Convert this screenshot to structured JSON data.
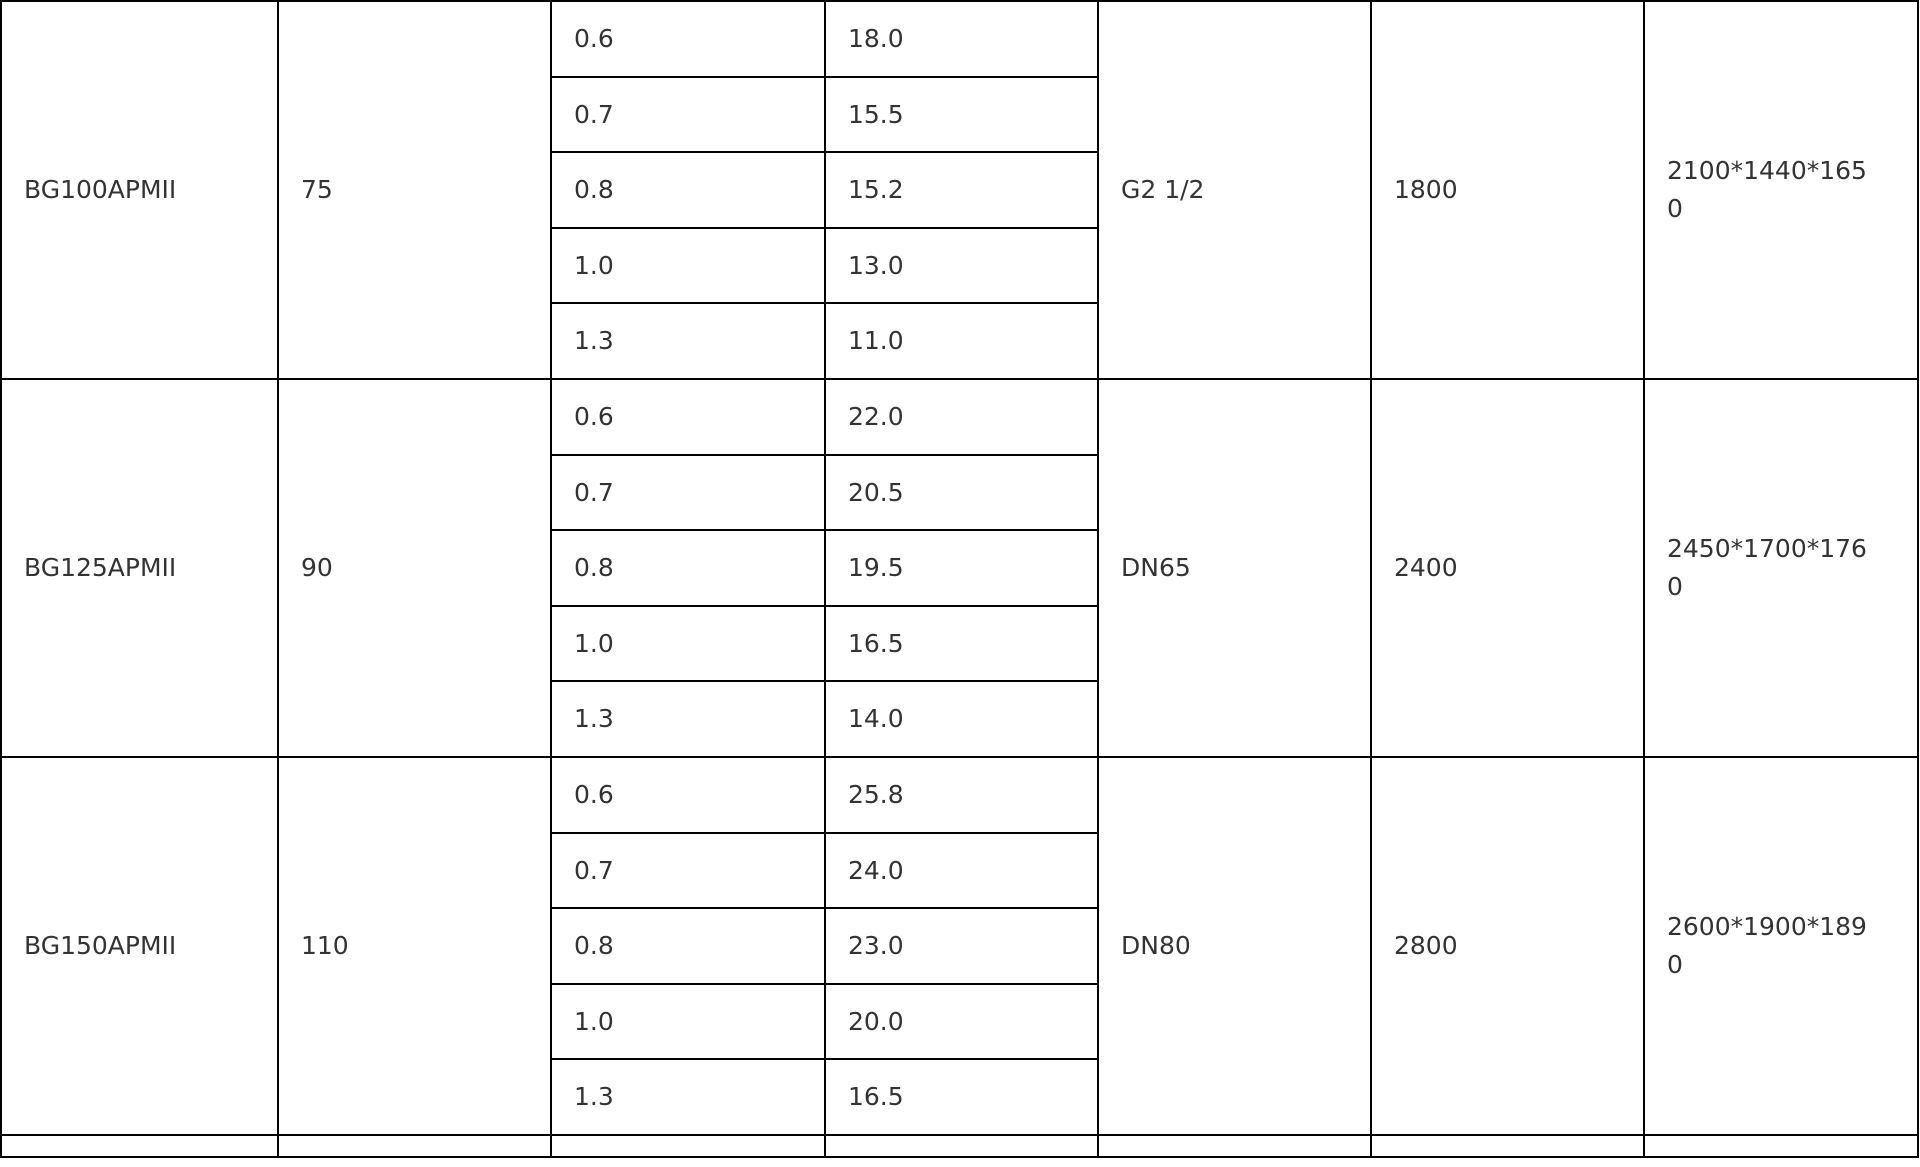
{
  "table": {
    "groups": [
      {
        "model": "BG100APMII",
        "power": "75",
        "rows": [
          {
            "pressure": "0.6",
            "flow": "18.0"
          },
          {
            "pressure": "0.7",
            "flow": "15.5"
          },
          {
            "pressure": "0.8",
            "flow": "15.2"
          },
          {
            "pressure": "1.0",
            "flow": "13.0"
          },
          {
            "pressure": "1.3",
            "flow": "11.0"
          }
        ],
        "outlet": "G2 1/2",
        "weight": "1800",
        "dimensions": "2100*1440*1650"
      },
      {
        "model": "BG125APMII",
        "power": "90",
        "rows": [
          {
            "pressure": "0.6",
            "flow": "22.0"
          },
          {
            "pressure": "0.7",
            "flow": "20.5"
          },
          {
            "pressure": "0.8",
            "flow": "19.5"
          },
          {
            "pressure": "1.0",
            "flow": "16.5"
          },
          {
            "pressure": "1.3",
            "flow": "14.0"
          }
        ],
        "outlet": "DN65",
        "weight": "2400",
        "dimensions": "2450*1700*1760"
      },
      {
        "model": "BG150APMII",
        "power": "110",
        "rows": [
          {
            "pressure": "0.6",
            "flow": "25.8"
          },
          {
            "pressure": "0.7",
            "flow": "24.0"
          },
          {
            "pressure": "0.8",
            "flow": "23.0"
          },
          {
            "pressure": "1.0",
            "flow": "20.0"
          },
          {
            "pressure": "1.3",
            "flow": "16.5"
          }
        ],
        "outlet": "DN80",
        "weight": "2800",
        "dimensions": "2600*1900*1890"
      }
    ]
  }
}
